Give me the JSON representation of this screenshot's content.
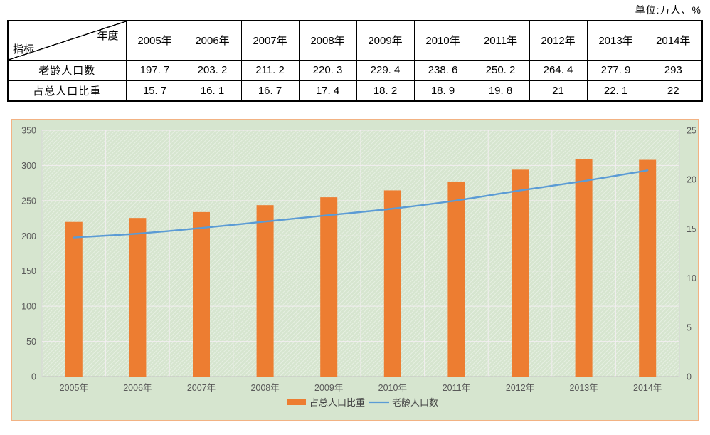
{
  "unit_label": "单位:万人、%",
  "table": {
    "corner_top_right": "年度",
    "corner_bottom_left": "指标",
    "year_headers": [
      "2005年",
      "2006年",
      "2007年",
      "2008年",
      "2009年",
      "2010年",
      "2011年",
      "2012年",
      "2013年",
      "2014年"
    ],
    "rows": [
      {
        "label": "老龄人口数",
        "values": [
          "197. 7",
          "203. 2",
          "211. 2",
          "220. 3",
          "229. 4",
          "238. 6",
          "250. 2",
          "264. 4",
          "277. 9",
          "293"
        ]
      },
      {
        "label": "占总人口比重",
        "values": [
          "15. 7",
          "16. 1",
          "16. 7",
          "17. 4",
          "18. 2",
          "18. 9",
          "19. 8",
          "21",
          "22. 1",
          "22"
        ]
      }
    ]
  },
  "chart_data": {
    "type": "bar",
    "subtype": "bar+line combo, dual axis",
    "categories": [
      "2005年",
      "2006年",
      "2007年",
      "2008年",
      "2009年",
      "2010年",
      "2011年",
      "2012年",
      "2013年",
      "2014年"
    ],
    "series": [
      {
        "name": "占总人口比重",
        "type": "bar",
        "axis": "right",
        "color": "#ED7D31",
        "values": [
          15.7,
          16.1,
          16.7,
          17.4,
          18.2,
          18.9,
          19.8,
          21,
          22.1,
          22
        ]
      },
      {
        "name": "老龄人口数",
        "type": "line",
        "axis": "left",
        "color": "#5B9BD5",
        "values": [
          197.7,
          203.2,
          211.2,
          220.3,
          229.4,
          238.6,
          250.2,
          264.4,
          277.9,
          293
        ]
      }
    ],
    "left_axis": {
      "min": 0,
      "max": 350,
      "tick_step": 50,
      "tick_labels": [
        "0",
        "50",
        "100",
        "150",
        "200",
        "250",
        "300",
        "350"
      ]
    },
    "right_axis": {
      "min": 0,
      "max": 25,
      "tick_step": 5,
      "tick_labels": [
        "0",
        "5",
        "10",
        "15",
        "20",
        "25"
      ]
    },
    "legend_position": "bottom",
    "grid": true,
    "title": "",
    "xlabel": "",
    "ylabel": ""
  },
  "colors": {
    "bar": "#ED7D31",
    "line": "#5B9BD5",
    "chart_bg": "#D6E5CF",
    "chart_border": "#F2B283",
    "axis_text": "#595959",
    "gridline": "rgba(246,238,244,0.85)",
    "plot_border": "#D8D8D8",
    "hatch_stripe": "rgba(255,255,255,0.5)"
  }
}
